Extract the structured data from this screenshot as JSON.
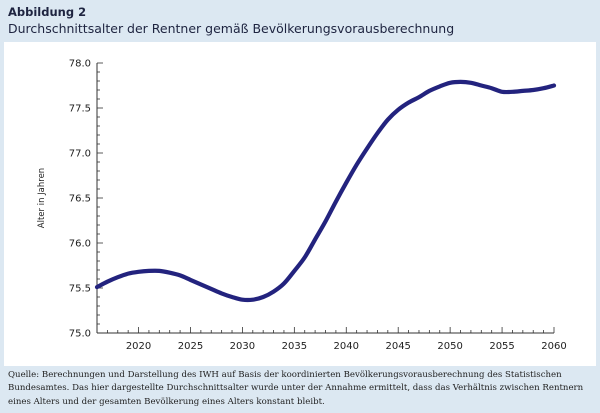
{
  "header": {
    "figure_label": "Abbildung 2",
    "title": "Durchschnittsalter der Rentner gemäß Bevölkerungsvorausberechnung"
  },
  "footer": {
    "source": "Quelle: Berechnungen und Darstellung des IWH auf Basis der koordinierten Bevölkerungsvorausberechnung des Statistischen Bundesamtes. Das hier dargestellte Durchschnittsalter wurde unter der Annahme ermittelt, dass das Verhältnis zwischen Rentnern eines Alters und der gesamten Bevölkerung eines Alters konstant bleibt."
  },
  "colors": {
    "background": "#dce8f2",
    "line": "#23237e",
    "axis": "#333333"
  },
  "chart_data": {
    "type": "line",
    "title": "",
    "xlabel": "",
    "ylabel": "Alter in Jahren",
    "xlim": [
      2016,
      2060
    ],
    "ylim": [
      75.0,
      78.0
    ],
    "x_ticks": [
      2020,
      2025,
      2030,
      2035,
      2040,
      2045,
      2050,
      2055,
      2060
    ],
    "y_ticks": [
      75.0,
      75.5,
      76.0,
      76.5,
      77.0,
      77.5,
      78.0
    ],
    "grid": false,
    "legend": "none",
    "series": [
      {
        "x": [
          2016,
          2017,
          2018,
          2019,
          2020,
          2021,
          2022,
          2023,
          2024,
          2025,
          2026,
          2027,
          2028,
          2029,
          2030,
          2031,
          2032,
          2033,
          2034,
          2035,
          2036,
          2037,
          2038,
          2039,
          2040,
          2041,
          2042,
          2043,
          2044,
          2045,
          2046,
          2047,
          2048,
          2049,
          2050,
          2051,
          2052,
          2053,
          2054,
          2055,
          2056,
          2057,
          2058,
          2059,
          2060
        ],
        "values": [
          75.51,
          75.57,
          75.62,
          75.66,
          75.68,
          75.69,
          75.69,
          75.67,
          75.64,
          75.59,
          75.54,
          75.49,
          75.44,
          75.4,
          75.37,
          75.37,
          75.4,
          75.46,
          75.55,
          75.69,
          75.84,
          76.04,
          76.24,
          76.46,
          76.67,
          76.87,
          77.05,
          77.22,
          77.37,
          77.48,
          77.56,
          77.62,
          77.69,
          77.74,
          77.78,
          77.79,
          77.78,
          77.75,
          77.72,
          77.68,
          77.68,
          77.69,
          77.7,
          77.72,
          77.75
        ]
      }
    ]
  }
}
